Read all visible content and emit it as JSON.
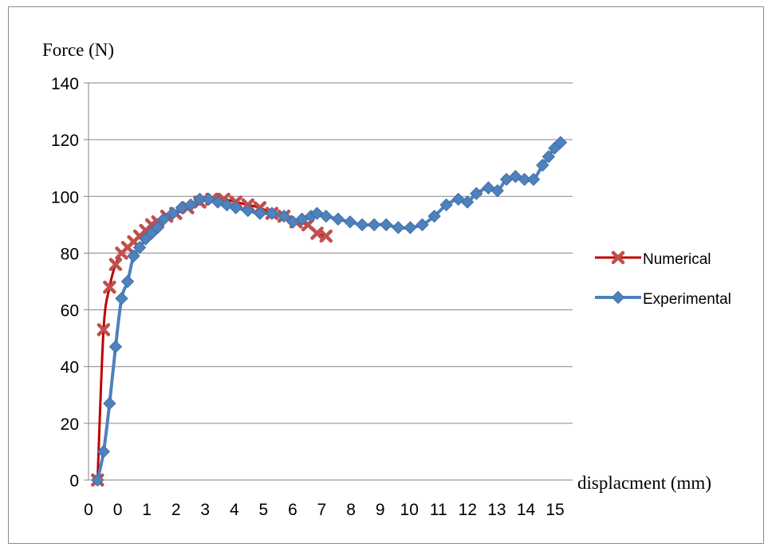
{
  "chart_data": {
    "type": "line",
    "title": "",
    "ylabel": "Force (N)",
    "xlabel": "displacment (mm)",
    "ylim": [
      0,
      140
    ],
    "yticks": [
      0,
      20,
      40,
      60,
      80,
      100,
      120,
      140
    ],
    "xtick_labels": [
      "0",
      "0",
      "1",
      "2",
      "3",
      "4",
      "5",
      "6",
      "7",
      "8",
      "9",
      "10",
      "11",
      "12",
      "13",
      "14",
      "15"
    ],
    "grid": "horizontal",
    "legend_position": "right",
    "series": [
      {
        "name": "Numerical",
        "color": "#c0504d",
        "line_color": "#c00000",
        "marker": "x",
        "x": [
          0,
          0.2,
          0.4,
          0.6,
          0.8,
          1.0,
          1.2,
          1.4,
          1.6,
          1.8,
          2.0,
          2.3,
          2.6,
          3.0,
          3.4,
          3.8,
          4.2,
          4.6,
          5.0,
          5.4,
          5.8,
          6.2,
          6.6,
          7.0,
          7.3,
          7.6
        ],
        "y": [
          0,
          53,
          68,
          76,
          80,
          82,
          84,
          86,
          88,
          90,
          91,
          93,
          94,
          96,
          98,
          99,
          99,
          98,
          97,
          96,
          94,
          93,
          91,
          90,
          87,
          86
        ]
      },
      {
        "name": "Experimental",
        "color": "#4f81bd",
        "line_color": "#4f81bd",
        "marker": "diamond",
        "x": [
          0,
          0.2,
          0.4,
          0.6,
          0.8,
          1.0,
          1.2,
          1.4,
          1.6,
          1.8,
          2.0,
          2.2,
          2.5,
          2.8,
          3.1,
          3.4,
          3.7,
          4.0,
          4.3,
          4.6,
          5.0,
          5.4,
          5.8,
          6.2,
          6.5,
          6.8,
          7.1,
          7.3,
          7.6,
          8.0,
          8.4,
          8.8,
          9.2,
          9.6,
          10.0,
          10.4,
          10.8,
          11.2,
          11.6,
          12.0,
          12.3,
          12.6,
          13.0,
          13.3,
          13.6,
          13.9,
          14.2,
          14.5,
          14.8,
          15.0,
          15.2,
          15.4
        ],
        "y": [
          0,
          10,
          27,
          47,
          64,
          70,
          79,
          82,
          85,
          87,
          89,
          92,
          94,
          96,
          97,
          99,
          99,
          98,
          97,
          96,
          95,
          94,
          94,
          93,
          91,
          92,
          93,
          94,
          93,
          92,
          91,
          90,
          90,
          90,
          89,
          89,
          90,
          93,
          97,
          99,
          98,
          101,
          103,
          102,
          106,
          107,
          106,
          106,
          111,
          114,
          117,
          119
        ]
      }
    ]
  }
}
